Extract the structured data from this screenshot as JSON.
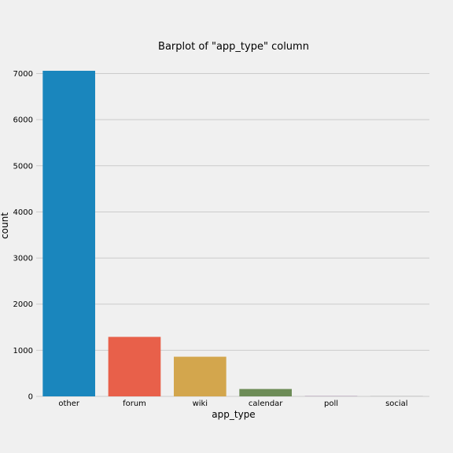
{
  "chart_data": {
    "type": "bar",
    "title": "Barplot of \"app_type\" column",
    "xlabel": "app_type",
    "ylabel": "count",
    "categories": [
      "other",
      "forum",
      "wiki",
      "calendar",
      "poll",
      "social"
    ],
    "values": [
      7060,
      1290,
      860,
      160,
      5,
      3
    ],
    "ylim": [
      0,
      7060
    ],
    "yticks": [
      0,
      1000,
      2000,
      3000,
      4000,
      5000,
      6000,
      7000
    ],
    "grid": true,
    "legend": "none",
    "colors": [
      "#1a86bd",
      "#e8604a",
      "#d3a64d",
      "#6d8c57",
      "#8b5f8f",
      "#8a8a8a"
    ],
    "background": "#f0f0f0",
    "grid_color": "#cbcbcb"
  }
}
